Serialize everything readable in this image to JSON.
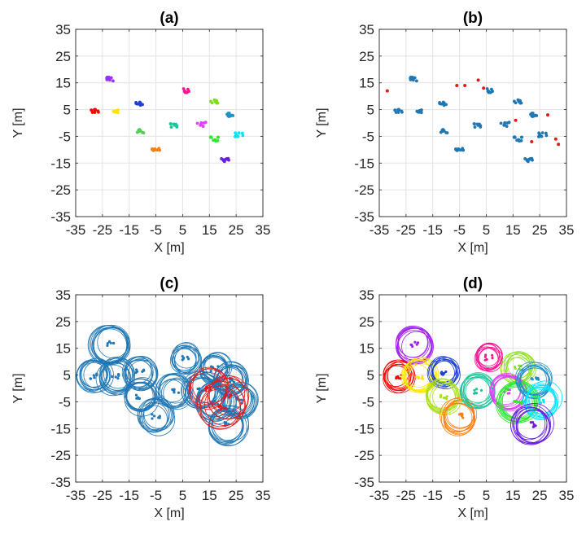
{
  "colors": {
    "blue": "#1f77b4",
    "red": "#e31a1c",
    "axis": "#262626",
    "grid": "#e3e3e3"
  },
  "chart_data": [
    {
      "id": "a",
      "type": "scatter",
      "title": "(a)",
      "xlabel": "X [m]",
      "ylabel": "Y [m]",
      "xlim": [
        -35,
        35
      ],
      "ylim": [
        -35,
        35
      ],
      "xticks": [
        "-35",
        "-25",
        "-15",
        "-5",
        "5",
        "15",
        "25",
        "35"
      ],
      "yticks": [
        "35",
        "25",
        "15",
        "5",
        "-5",
        "-15",
        "-25",
        "-35"
      ],
      "grid": true,
      "clusters": [
        {
          "color": "#ff0000",
          "center": [
            -28,
            4.5
          ]
        },
        {
          "color": "#9b30ff",
          "center": [
            -22,
            16.5
          ]
        },
        {
          "color": "#ffe600",
          "center": [
            -20,
            4.5
          ]
        },
        {
          "color": "#1f3fd6",
          "center": [
            -11,
            7
          ]
        },
        {
          "color": "#4fd14f",
          "center": [
            -11,
            -3
          ]
        },
        {
          "color": "#ff7f0e",
          "center": [
            -5,
            -10
          ]
        },
        {
          "color": "#ff1493",
          "center": [
            6,
            12
          ]
        },
        {
          "color": "#18c79a",
          "center": [
            2,
            -1
          ]
        },
        {
          "color": "#e040fb",
          "center": [
            12,
            -0.5
          ]
        },
        {
          "color": "#7be015",
          "center": [
            17,
            8
          ]
        },
        {
          "color": "#2ee82e",
          "center": [
            17,
            -6
          ]
        },
        {
          "color": "#1e90c8",
          "center": [
            23,
            3
          ]
        },
        {
          "color": "#00e5ff",
          "center": [
            26,
            -4.5
          ]
        },
        {
          "color": "#6a1fe0",
          "center": [
            21,
            -14
          ]
        }
      ]
    },
    {
      "id": "b",
      "type": "scatter",
      "title": "(b)",
      "xlabel": "X [m]",
      "ylabel": "Y [m]",
      "xlim": [
        -35,
        35
      ],
      "ylim": [
        -35,
        35
      ],
      "xticks": [
        "-35",
        "-25",
        "-15",
        "-5",
        "5",
        "15",
        "25",
        "35"
      ],
      "yticks": [
        "35",
        "25",
        "15",
        "5",
        "-5",
        "-15",
        "-25",
        "-35"
      ],
      "grid": true,
      "clusters": [
        {
          "color": "#1f77b4",
          "center": [
            -28,
            4.5
          ]
        },
        {
          "color": "#1f77b4",
          "center": [
            -22,
            16.5
          ]
        },
        {
          "color": "#1f77b4",
          "center": [
            -20,
            4.5
          ]
        },
        {
          "color": "#1f77b4",
          "center": [
            -11,
            7
          ]
        },
        {
          "color": "#1f77b4",
          "center": [
            -11,
            -3
          ]
        },
        {
          "color": "#1f77b4",
          "center": [
            -5,
            -10
          ]
        },
        {
          "color": "#1f77b4",
          "center": [
            6,
            12
          ]
        },
        {
          "color": "#1f77b4",
          "center": [
            2,
            -1
          ]
        },
        {
          "color": "#1f77b4",
          "center": [
            12,
            -0.5
          ]
        },
        {
          "color": "#1f77b4",
          "center": [
            17,
            8
          ]
        },
        {
          "color": "#1f77b4",
          "center": [
            17,
            -6
          ]
        },
        {
          "color": "#1f77b4",
          "center": [
            23,
            3
          ]
        },
        {
          "color": "#1f77b4",
          "center": [
            26,
            -4.5
          ]
        },
        {
          "color": "#1f77b4",
          "center": [
            21,
            -14
          ]
        }
      ],
      "outliers": {
        "color": "#e31a1c",
        "points": [
          [
            -32,
            12
          ],
          [
            -6,
            14
          ],
          [
            -3,
            14
          ],
          [
            2,
            16
          ],
          [
            4,
            13
          ],
          [
            16,
            1
          ],
          [
            22,
            -7
          ],
          [
            28,
            3
          ],
          [
            31,
            -6
          ],
          [
            32,
            -8
          ]
        ]
      }
    },
    {
      "id": "c",
      "type": "scatter",
      "title": "(c)",
      "xlabel": "X [m]",
      "ylabel": "Y [m]",
      "xlim": [
        -35,
        35
      ],
      "ylim": [
        -35,
        35
      ],
      "xticks": [
        "-35",
        "-25",
        "-15",
        "-5",
        "5",
        "15",
        "25",
        "35"
      ],
      "yticks": [
        "35",
        "25",
        "15",
        "5",
        "-5",
        "-15",
        "-25",
        "-35"
      ],
      "grid": true,
      "circle_groups": [
        {
          "center": [
            -22,
            16.5
          ],
          "radius": 7,
          "color": "#1f77b4"
        },
        {
          "center": [
            -28,
            4.5
          ],
          "radius": 6,
          "color": "#1f77b4"
        },
        {
          "center": [
            -20,
            4.5
          ],
          "radius": 6,
          "color": "#1f77b4"
        },
        {
          "center": [
            -11,
            6
          ],
          "radius": 6,
          "color": "#1f77b4"
        },
        {
          "center": [
            -11,
            -3
          ],
          "radius": 6,
          "color": "#1f77b4"
        },
        {
          "center": [
            -5,
            -10.5
          ],
          "radius": 6,
          "color": "#1f77b4"
        },
        {
          "center": [
            6,
            11.5
          ],
          "radius": 5,
          "color": "#1f77b4"
        },
        {
          "center": [
            2,
            -1
          ],
          "radius": 6,
          "color": "#1f77b4"
        },
        {
          "center": [
            17,
            7.5
          ],
          "radius": 5.5,
          "color": "#1f77b4"
        },
        {
          "center": [
            12,
            -1
          ],
          "radius": 6.5,
          "color": "#1f77b4"
        },
        {
          "center": [
            17,
            -5
          ],
          "radius": 7,
          "color": "#1f77b4"
        },
        {
          "center": [
            23,
            3
          ],
          "radius": 6,
          "color": "#1f77b4"
        },
        {
          "center": [
            26,
            -4.5
          ],
          "radius": 6,
          "color": "#1f77b4"
        },
        {
          "center": [
            22,
            -13.5
          ],
          "radius": 7,
          "color": "#1f77b4"
        },
        {
          "center": [
            15,
            0
          ],
          "radius": 7,
          "color": "#e31a1c"
        },
        {
          "center": [
            20,
            -7
          ],
          "radius": 9,
          "color": "#e31a1c"
        },
        {
          "center": [
            22,
            -3
          ],
          "radius": 8,
          "color": "#e31a1c"
        }
      ]
    },
    {
      "id": "d",
      "type": "scatter",
      "title": "(d)",
      "xlabel": "X [m]",
      "ylabel": "Y [m]",
      "xlim": [
        -35,
        35
      ],
      "ylim": [
        -35,
        35
      ],
      "xticks": [
        "-35",
        "-25",
        "-15",
        "-5",
        "5",
        "15",
        "25",
        "35"
      ],
      "yticks": [
        "35",
        "25",
        "15",
        "5",
        "-5",
        "-15",
        "-25",
        "-35"
      ],
      "grid": true,
      "circle_groups": [
        {
          "center": [
            -22,
            16.5
          ],
          "radius": 6.5,
          "color": "#a020f0"
        },
        {
          "center": [
            -28,
            4.5
          ],
          "radius": 5.5,
          "color": "#ff0000"
        },
        {
          "center": [
            -20,
            4.5
          ],
          "radius": 6,
          "color": "#ffe600"
        },
        {
          "center": [
            -11,
            6
          ],
          "radius": 5.5,
          "color": "#1f3fd6"
        },
        {
          "center": [
            -11,
            -3
          ],
          "radius": 6,
          "color": "#a8e01a"
        },
        {
          "center": [
            -5,
            -10.5
          ],
          "radius": 6,
          "color": "#ff7f0e"
        },
        {
          "center": [
            6,
            11.5
          ],
          "radius": 5,
          "color": "#ff1493"
        },
        {
          "center": [
            2,
            -1
          ],
          "radius": 6,
          "color": "#18c79a"
        },
        {
          "center": [
            17,
            7.5
          ],
          "radius": 5.5,
          "color": "#90e020"
        },
        {
          "center": [
            13,
            -1
          ],
          "radius": 6.5,
          "color": "#e040fb"
        },
        {
          "center": [
            17,
            -5
          ],
          "radius": 7,
          "color": "#2ee82e"
        },
        {
          "center": [
            23,
            3
          ],
          "radius": 6,
          "color": "#1e90c8"
        },
        {
          "center": [
            26,
            -4.5
          ],
          "radius": 6,
          "color": "#00e5ff"
        },
        {
          "center": [
            22,
            -13.5
          ],
          "radius": 7,
          "color": "#6a1fe0"
        }
      ]
    }
  ]
}
